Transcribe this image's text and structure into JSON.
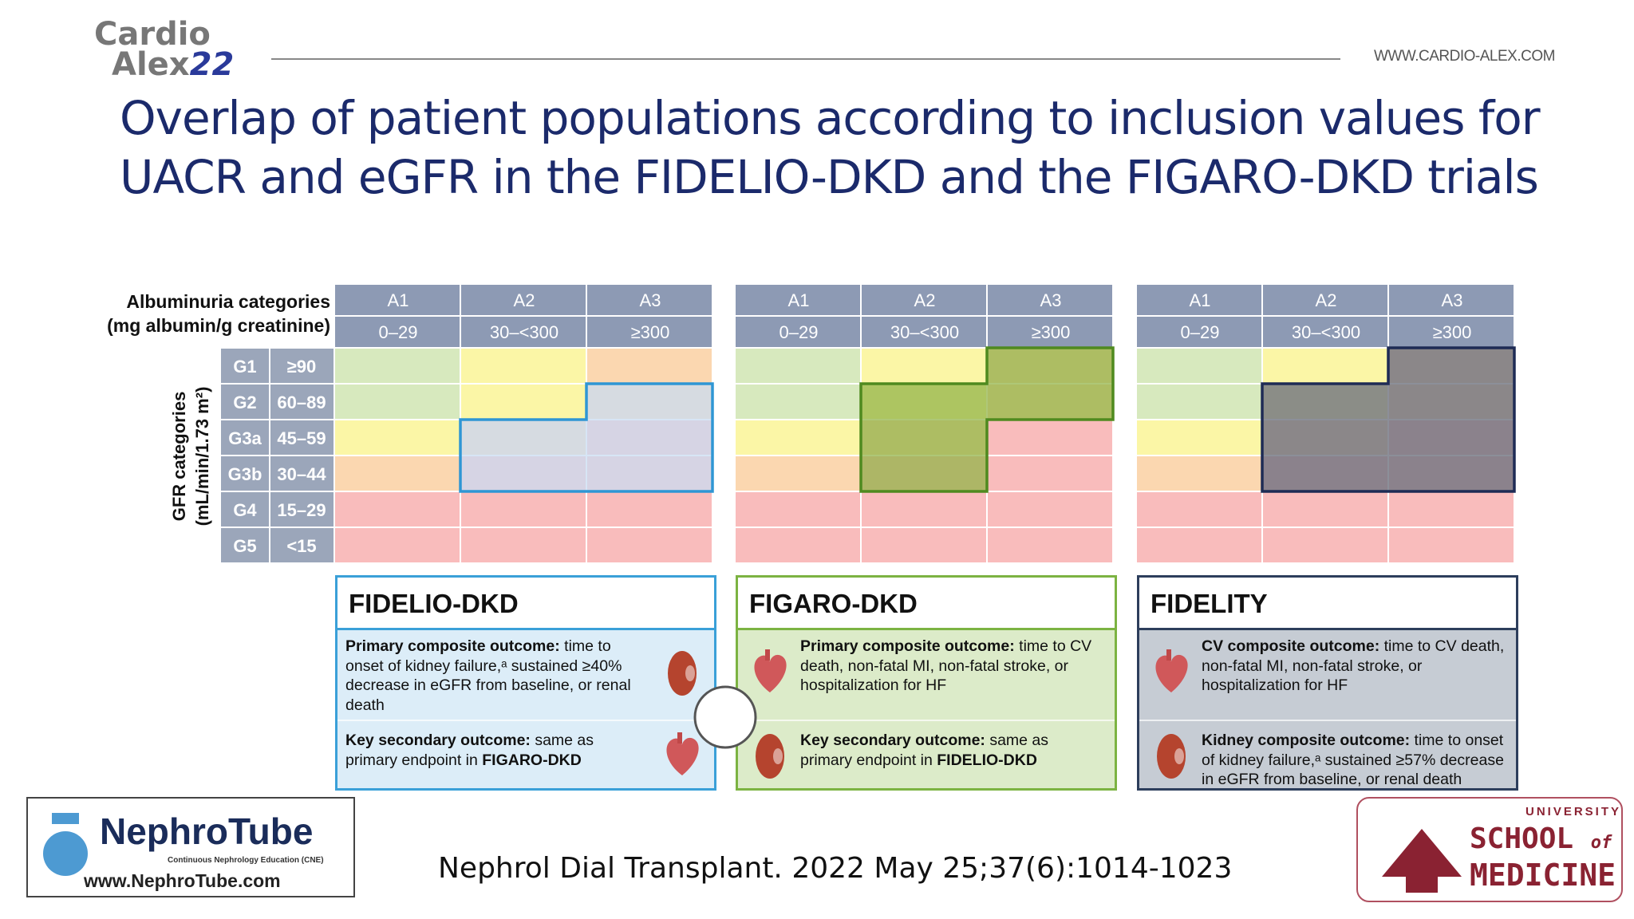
{
  "header": {
    "logo": [
      "Cardio",
      "Alex",
      "22"
    ],
    "url": "WWW.CARDIO-ALEX.COM"
  },
  "title": [
    "Overlap of patient populations according to inclusion values for",
    "UACR and eGFR in the FIDELIO-DKD and the FIGARO-DKD trials"
  ],
  "figure": {
    "albuminuria": {
      "label": [
        "Albuminuria categories",
        "(mg albumin/g creatinine)"
      ],
      "columns": [
        {
          "name": "A1",
          "range": "0–29"
        },
        {
          "name": "A2",
          "range": "30–<300"
        },
        {
          "name": "A3",
          "range": "≥300"
        }
      ]
    },
    "gfr": {
      "label": [
        "GFR categories",
        "(mL/min/1.73 m²)"
      ],
      "rows": [
        {
          "name": "G1",
          "range": "≥90"
        },
        {
          "name": "G2",
          "range": "60–89"
        },
        {
          "name": "G3a",
          "range": "45–59"
        },
        {
          "name": "G3b",
          "range": "30–44"
        },
        {
          "name": "G4",
          "range": "15–29"
        },
        {
          "name": "G5",
          "range": "<15"
        }
      ]
    },
    "trials": [
      {
        "name": "FIDELIO-DKD",
        "outcomes": [
          {
            "label": "Primary composite outcome:",
            "text": "time to onset of kidney failure,ᵃ sustained ≥40% decrease in eGFR from baseline, or renal death"
          },
          {
            "label": "Key secondary outcome:",
            "text": "same as primary endpoint in",
            "emphasis": "FIGARO-DKD"
          }
        ]
      },
      {
        "name": "FIGARO-DKD",
        "outcomes": [
          {
            "label": "Primary composite outcome:",
            "text": "time to CV death, non-fatal MI, non-fatal stroke, or hospitalization for HF"
          },
          {
            "label": "Key secondary outcome:",
            "text": "same as primary endpoint in",
            "emphasis": "FIDELIO-DKD"
          }
        ]
      },
      {
        "name": "FIDELITY",
        "outcomes": [
          {
            "label": "CV composite outcome:",
            "text": "time to CV death, non-fatal MI, non-fatal stroke, or hospitalization for HF"
          },
          {
            "label": "Kidney composite outcome:",
            "text": "time to onset of kidney failure,ᵃ sustained ≥57% decrease in eGFR from baseline, or renal death"
          }
        ]
      }
    ]
  },
  "footer": {
    "citation": "Nephrol Dial Transplant. 2022 May 25;37(6):1014-1023",
    "left_logo": {
      "name": "NephroTube",
      "tagline": "Continuous Nephrology Education (CNE)",
      "url": "www.NephroTube.com"
    },
    "right_logo": [
      "UNIVERSITY",
      "SCHOOL",
      "of",
      "MEDICINE"
    ]
  }
}
